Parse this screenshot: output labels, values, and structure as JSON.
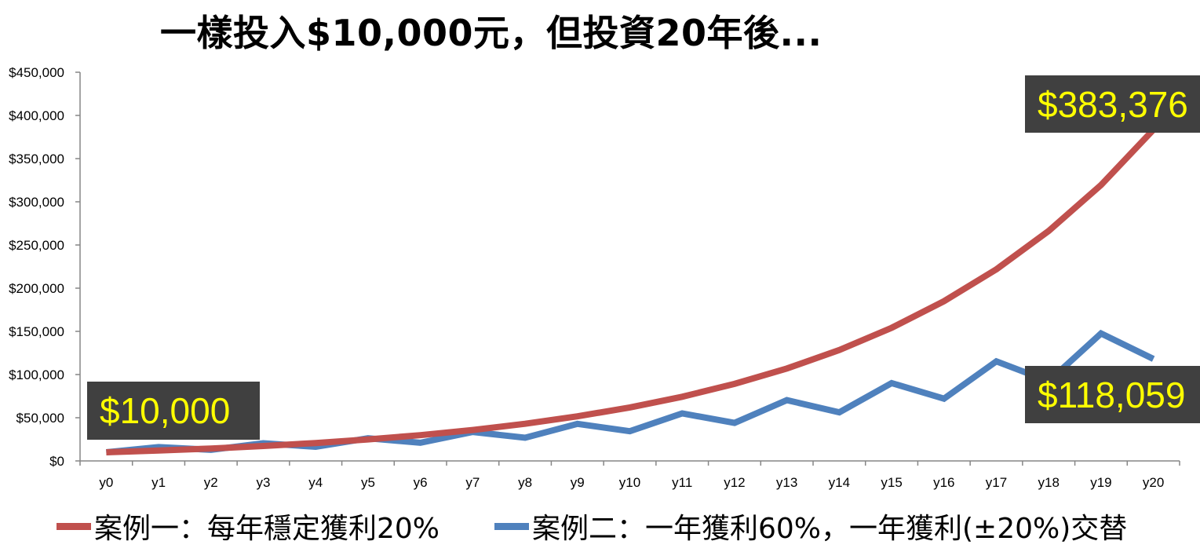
{
  "title": "一樣投入$10,000元，但投資20年後...",
  "callouts": {
    "start": "$10,000",
    "end_case1": "$383,376",
    "end_case2": "$118,059"
  },
  "chart_data": {
    "type": "line",
    "title": "一樣投入$10,000元，但投資20年後...",
    "xlabel": "",
    "ylabel": "",
    "categories": [
      "y0",
      "y1",
      "y2",
      "y3",
      "y4",
      "y5",
      "y6",
      "y7",
      "y8",
      "y9",
      "y10",
      "y11",
      "y12",
      "y13",
      "y14",
      "y15",
      "y16",
      "y17",
      "y18",
      "y19",
      "y20"
    ],
    "ylim": [
      0,
      450000
    ],
    "yticks": [
      0,
      50000,
      100000,
      150000,
      200000,
      250000,
      300000,
      350000,
      400000,
      450000
    ],
    "ytick_labels": [
      "$0",
      "$50,000",
      "$100,000",
      "$150,000",
      "$200,000",
      "$250,000",
      "$300,000",
      "$350,000",
      "$400,000",
      "$450,000"
    ],
    "grid": false,
    "legend_position": "bottom",
    "series": [
      {
        "name": "案例一：每年穩定獲利20%",
        "color": "#C0504D",
        "values": [
          10000,
          12000,
          14400,
          17280,
          20736,
          24883,
          29860,
          35832,
          42998,
          51598,
          61917,
          74301,
          89161,
          106993,
          128392,
          154070,
          184884,
          221861,
          266233,
          319480,
          383376
        ]
      },
      {
        "name": "案例二：一年獲利60%，一年獲利(±20%)交替",
        "color": "#4F81BD",
        "values": [
          10000,
          16000,
          12800,
          20480,
          16384,
          26214,
          20972,
          33554,
          26844,
          42950,
          34360,
          54976,
          43980,
          70369,
          56295,
          90072,
          72058,
          115292,
          92234,
          147574,
          118059
        ]
      }
    ]
  }
}
